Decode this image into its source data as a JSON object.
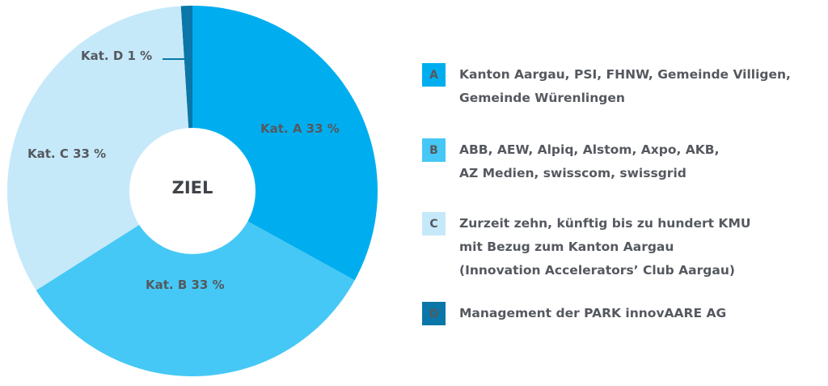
{
  "chart_data": {
    "type": "pie",
    "center_label": "ZIEL",
    "slices": [
      {
        "key": "A",
        "label": "Kat. A  33 %",
        "value": 33,
        "color": "#00aeef"
      },
      {
        "key": "B",
        "label": "Kat. B  33 %",
        "value": 33,
        "color": "#45c8f5"
      },
      {
        "key": "C",
        "label": "Kat. C  33 %",
        "value": 33,
        "color": "#c6e9fa"
      },
      {
        "key": "D",
        "label": "Kat. D  1 %",
        "value": 1,
        "color": "#0a77a8"
      }
    ],
    "legend": [
      {
        "badge": "A",
        "color": "#00aeef",
        "lines": [
          "Kanton Aargau, PSI, FHNW, Gemeinde Villigen,",
          "Gemeinde Würenlingen"
        ]
      },
      {
        "badge": "B",
        "color": "#45c8f5",
        "lines": [
          "ABB, AEW, Alpiq, Alstom, Axpo, AKB,",
          "AZ Medien, swisscom, swissgrid"
        ]
      },
      {
        "badge": "C",
        "color": "#c6e9fa",
        "lines": [
          "Zurzeit zehn, künftig bis zu hundert KMU",
          "mit Bezug zum Kanton Aargau",
          "(Innovation Accelerators’ Club Aargau)"
        ]
      },
      {
        "badge": "D",
        "color": "#0a77a8",
        "lines": [
          "Management der PARK innovAARE AG"
        ]
      }
    ]
  }
}
